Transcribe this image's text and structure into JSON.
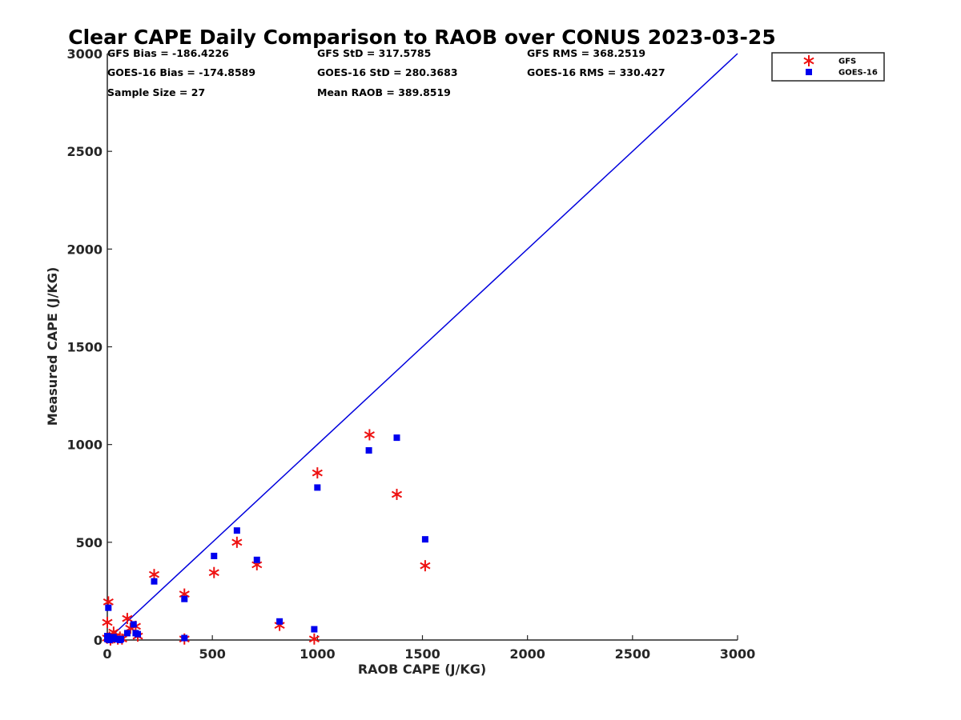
{
  "chart_data": {
    "type": "scatter",
    "title": "Clear CAPE Daily Comparison to RAOB over CONUS 2023-03-25",
    "xlabel": "RAOB CAPE (J/KG)",
    "ylabel": "Measured CAPE (J/KG)",
    "xlim": [
      0,
      3000
    ],
    "ylim": [
      0,
      3000
    ],
    "xticks": [
      "0",
      "500",
      "1000",
      "1500",
      "2000",
      "2500",
      "3000"
    ],
    "yticks": [
      "0",
      "500",
      "1000",
      "1500",
      "2000",
      "2500",
      "3000"
    ],
    "grid": false,
    "legend_position": "top-right",
    "reference_line": {
      "x": [
        0,
        3000
      ],
      "y": [
        0,
        3000
      ],
      "color": "#0000dd"
    },
    "stats": [
      "GFS Bias = -186.4226",
      "GFS StD = 317.5785",
      "GFS RMS = 368.2519",
      "GOES-16 Bias = -174.8589",
      "GOES-16 StD = 280.3683",
      "GOES-16 RMS = 330.427",
      "Sample Size = 27",
      "Mean RAOB = 389.8519"
    ],
    "series": [
      {
        "name": "GFS",
        "marker": "asterisk",
        "color": "#ee1111",
        "x": [
          1248,
          1000,
          1378,
          617,
          712,
          1513,
          223,
          508,
          367,
          820,
          985,
          367,
          0,
          5,
          95,
          135,
          15,
          40,
          60,
          25,
          70,
          145,
          10,
          30,
          50,
          0,
          110
        ],
        "y": [
          1050,
          855,
          745,
          500,
          385,
          380,
          335,
          345,
          235,
          75,
          5,
          5,
          90,
          195,
          110,
          70,
          0,
          20,
          15,
          10,
          5,
          20,
          15,
          40,
          5,
          10,
          60
        ]
      },
      {
        "name": "GOES-16",
        "marker": "square",
        "color": "#0000ee",
        "x": [
          1378,
          1245,
          1000,
          617,
          1513,
          508,
          712,
          223,
          367,
          820,
          985,
          367,
          5,
          95,
          125,
          135,
          0,
          15,
          30,
          50,
          65,
          10,
          40,
          20,
          60,
          145,
          0
        ],
        "y": [
          1035,
          970,
          780,
          560,
          515,
          430,
          410,
          300,
          210,
          95,
          55,
          10,
          165,
          35,
          80,
          35,
          20,
          10,
          15,
          5,
          5,
          0,
          5,
          10,
          0,
          30,
          5
        ]
      }
    ]
  }
}
